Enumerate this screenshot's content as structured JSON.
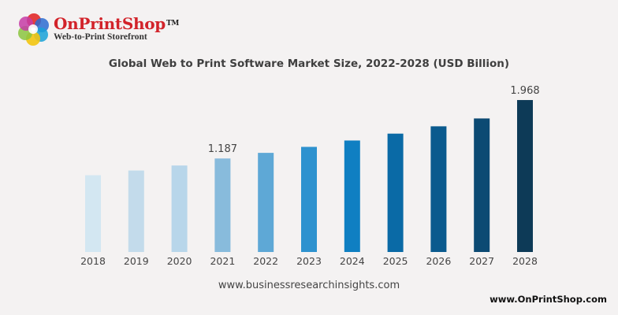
{
  "logo": {
    "name": "OnPrintShop",
    "tm": "TM",
    "tagline": "Web-to-Print Storefront"
  },
  "chart_data": {
    "type": "bar",
    "title": "Global Web to Print Software Market Size, 2022-2028 (USD Billion)",
    "xlabel": "",
    "ylabel": "",
    "ylim": [
      0,
      2.1
    ],
    "grid": false,
    "categories": [
      "2018",
      "2019",
      "2020",
      "2021",
      "2022",
      "2023",
      "2024",
      "2025",
      "2026",
      "2027",
      "2028"
    ],
    "values": [
      0.963,
      1.026,
      1.093,
      1.187,
      1.262,
      1.342,
      1.427,
      1.519,
      1.617,
      1.722,
      1.968
    ],
    "data_labels": [
      "",
      "",
      "",
      "1.187",
      "",
      "",
      "",
      "",
      "",
      "",
      "1.968"
    ],
    "colors": [
      "#d3e7f2",
      "#c3dbeb",
      "#b8d6ea",
      "#88bbdc",
      "#5ea8d6",
      "#2e92cf",
      "#0f7fc2",
      "#0a6aa6",
      "#0a5a8e",
      "#0c4a73",
      "#0d3a57"
    ]
  },
  "source": "www.businessresearchinsights.com",
  "site": "www.OnPrintShop.com"
}
